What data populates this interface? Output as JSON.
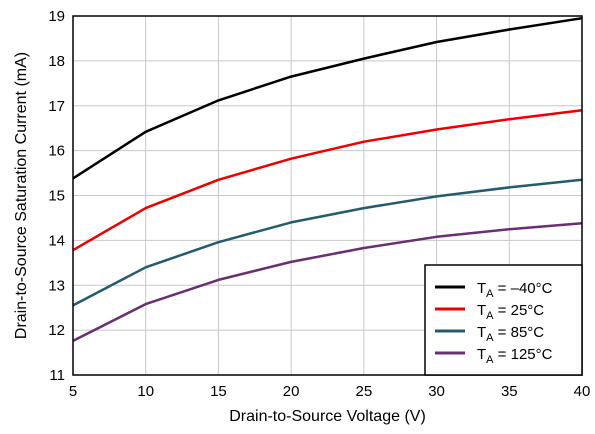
{
  "chart_data": {
    "type": "line",
    "xlabel": "Drain-to-Source Voltage (V)",
    "ylabel": "Drain-to-Source Saturation Current (mA)",
    "xlim": [
      5,
      40
    ],
    "ylim": [
      11,
      19
    ],
    "xticks": [
      5,
      10,
      15,
      20,
      25,
      30,
      35,
      40
    ],
    "yticks": [
      11,
      12,
      13,
      14,
      15,
      16,
      17,
      18,
      19
    ],
    "grid": true,
    "legend_position": "bottom-right",
    "x": [
      5,
      10,
      15,
      20,
      25,
      30,
      35,
      40
    ],
    "series": [
      {
        "name": "T_A = –40°C",
        "label_main": "T",
        "label_sub": "A",
        "label_rest": " = –40°C",
        "color": "#000000",
        "values": [
          15.38,
          16.42,
          17.12,
          17.65,
          18.05,
          18.42,
          18.7,
          18.95
        ]
      },
      {
        "name": "T_A = 25°C",
        "label_main": "T",
        "label_sub": "A",
        "label_rest": " = 25°C",
        "color": "#ee0000",
        "values": [
          13.78,
          14.72,
          15.35,
          15.82,
          16.2,
          16.47,
          16.7,
          16.9
        ]
      },
      {
        "name": "T_A = 85°C",
        "label_main": "T",
        "label_sub": "A",
        "label_rest": " = 85°C",
        "color": "#255b6f",
        "values": [
          12.55,
          13.4,
          13.96,
          14.4,
          14.72,
          14.98,
          15.18,
          15.35
        ]
      },
      {
        "name": "T_A = 125°C",
        "label_main": "T",
        "label_sub": "A",
        "label_rest": " = 125°C",
        "color": "#6a2e72",
        "values": [
          11.76,
          12.58,
          13.12,
          13.52,
          13.83,
          14.08,
          14.25,
          14.38
        ]
      }
    ]
  }
}
